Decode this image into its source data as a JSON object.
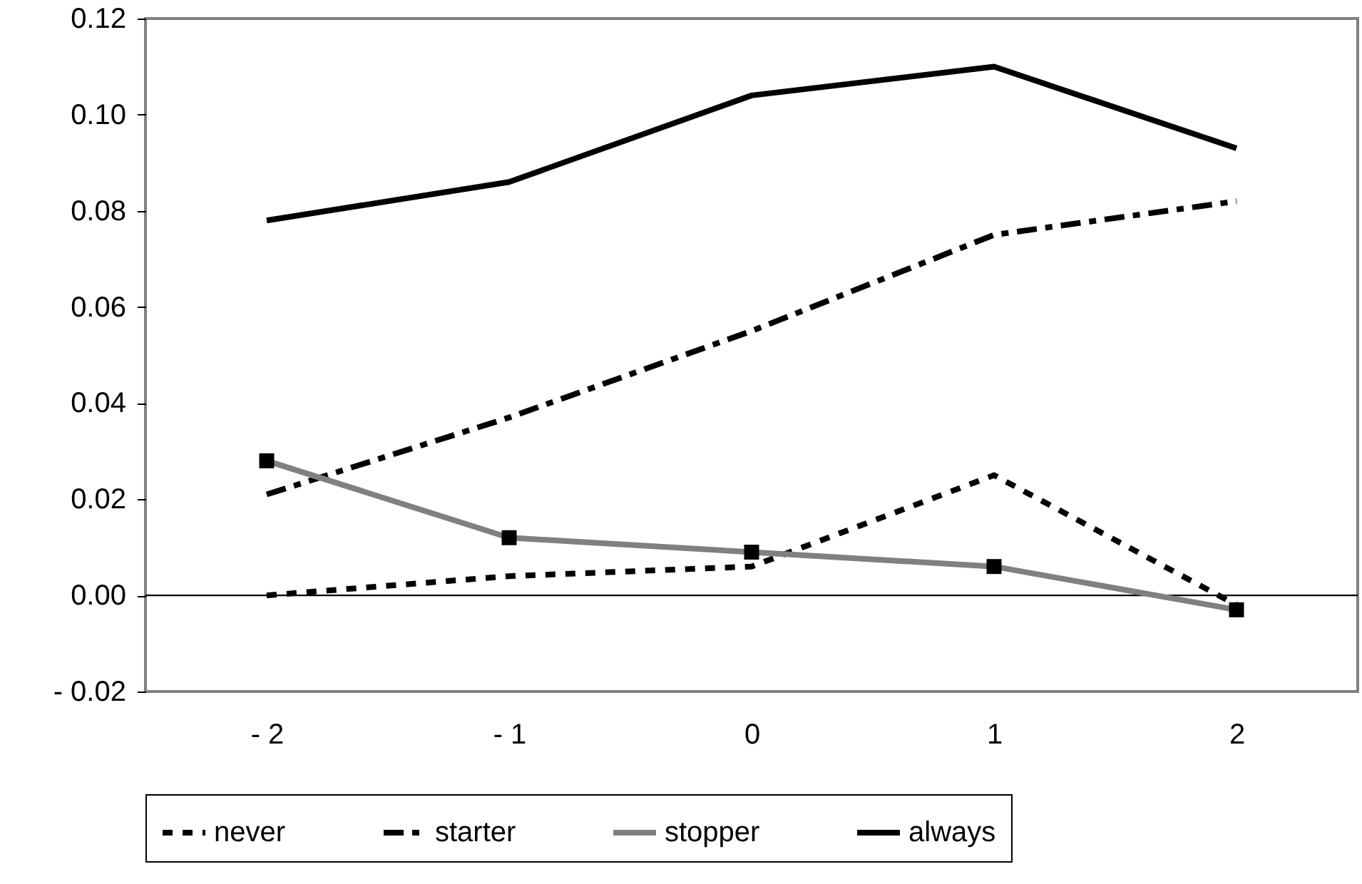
{
  "chart_data": {
    "type": "line",
    "categories": [
      "- 2",
      "- 1",
      "0",
      "1",
      "2"
    ],
    "ylim": [
      -0.02,
      0.12
    ],
    "yticks": [
      {
        "value": -0.02,
        "label": "- 0.02"
      },
      {
        "value": 0,
        "label": "0.00"
      },
      {
        "value": 0.02,
        "label": "0.02"
      },
      {
        "value": 0.04,
        "label": "0.04"
      },
      {
        "value": 0.06,
        "label": "0.06"
      },
      {
        "value": 0.08,
        "label": "0.08"
      },
      {
        "value": 0.1,
        "label": "0.10"
      },
      {
        "value": 0.12,
        "label": "0.12"
      }
    ],
    "grid": false,
    "legend": "bottom",
    "ref_lines": [
      {
        "axis": "y",
        "value": 0,
        "color": "#000000"
      }
    ],
    "series": [
      {
        "name": "never",
        "color": "#000000",
        "line_style": "dotted",
        "marker": "none",
        "values": [
          0.0,
          0.004,
          0.006,
          0.025,
          -0.002
        ]
      },
      {
        "name": "starter",
        "color": "#000000",
        "line_style": "dashed",
        "marker": "none",
        "values": [
          0.021,
          0.037,
          0.055,
          0.075,
          0.082
        ]
      },
      {
        "name": "stopper",
        "color": "#808080",
        "line_style": "solid",
        "marker": "square",
        "values": [
          0.028,
          0.012,
          0.009,
          0.006,
          -0.003
        ]
      },
      {
        "name": "always",
        "color": "#000000",
        "line_style": "solid",
        "marker": "none",
        "values": [
          0.078,
          0.086,
          0.104,
          0.11,
          0.093
        ]
      }
    ]
  }
}
